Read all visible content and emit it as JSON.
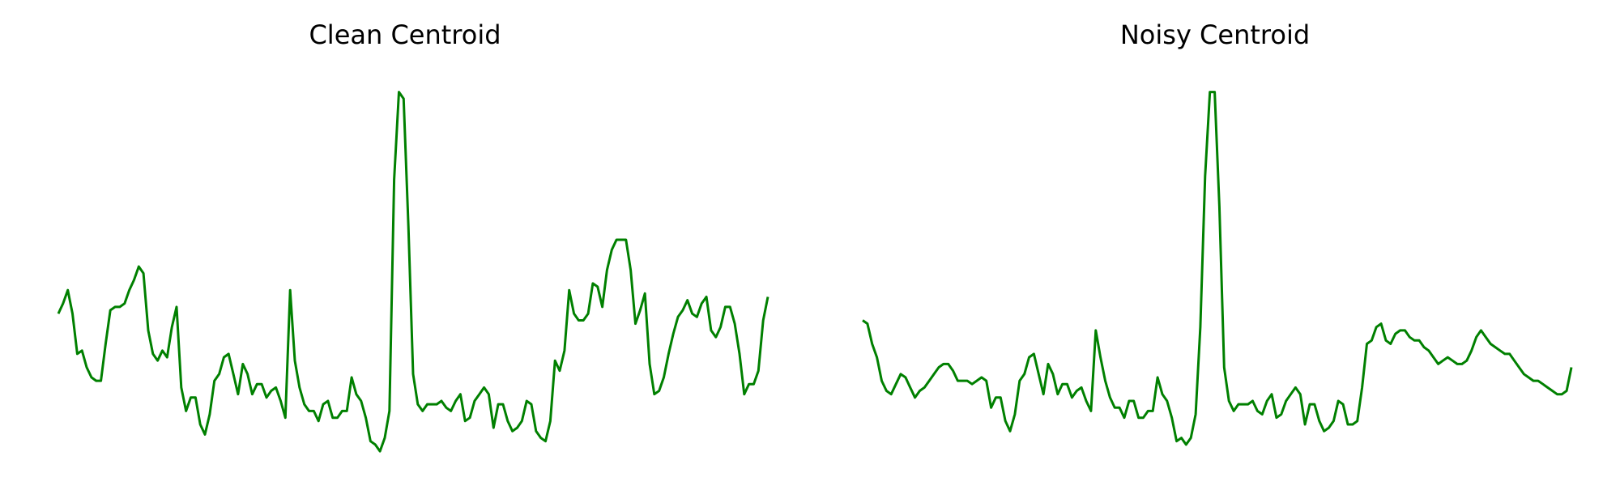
{
  "chart_data": [
    {
      "type": "line",
      "title": "Clean Centroid",
      "axes_visible": false,
      "grid": false,
      "line_color": "#008000",
      "series": [
        {
          "values": [
            0.34,
            0.37,
            0.41,
            0.34,
            0.22,
            0.23,
            0.18,
            0.15,
            0.14,
            0.14,
            0.25,
            0.35,
            0.36,
            0.36,
            0.37,
            0.41,
            0.44,
            0.48,
            0.46,
            0.29,
            0.22,
            0.2,
            0.23,
            0.21,
            0.3,
            0.36,
            0.12,
            0.05,
            0.09,
            0.09,
            0.01,
            -0.02,
            0.04,
            0.14,
            0.16,
            0.21,
            0.22,
            0.16,
            0.1,
            0.19,
            0.16,
            0.1,
            0.13,
            0.13,
            0.09,
            0.11,
            0.12,
            0.08,
            0.03,
            0.41,
            0.2,
            0.12,
            0.07,
            0.05,
            0.05,
            0.02,
            0.07,
            0.08,
            0.03,
            0.03,
            0.05,
            0.05,
            0.15,
            0.1,
            0.08,
            0.03,
            -0.04,
            -0.05,
            -0.07,
            -0.03,
            0.05,
            0.74,
            1.0,
            0.98,
            0.6,
            0.16,
            0.07,
            0.05,
            0.07,
            0.07,
            0.07,
            0.08,
            0.06,
            0.05,
            0.08,
            0.1,
            0.02,
            0.03,
            0.08,
            0.1,
            0.12,
            0.1,
            0.0,
            0.07,
            0.07,
            0.02,
            -0.01,
            0.0,
            0.02,
            0.08,
            0.07,
            -0.01,
            -0.03,
            -0.04,
            0.02,
            0.2,
            0.17,
            0.23,
            0.41,
            0.34,
            0.32,
            0.32,
            0.34,
            0.43,
            0.42,
            0.36,
            0.47,
            0.53,
            0.56,
            0.56,
            0.56,
            0.47,
            0.31,
            0.35,
            0.4,
            0.19,
            0.1,
            0.11,
            0.15,
            0.22,
            0.28,
            0.33,
            0.35,
            0.38,
            0.34,
            0.33,
            0.37,
            0.39,
            0.29,
            0.27,
            0.3,
            0.36,
            0.36,
            0.31,
            0.22,
            0.1,
            0.13,
            0.13,
            0.17,
            0.32,
            0.39
          ]
        }
      ],
      "ylim": [
        -0.06,
        1.04
      ]
    },
    {
      "type": "line",
      "title": "Noisy Centroid",
      "axes_visible": false,
      "grid": false,
      "line_color": "#008000",
      "series": [
        {
          "values": [
            0.32,
            0.31,
            0.25,
            0.21,
            0.14,
            0.11,
            0.1,
            0.13,
            0.16,
            0.15,
            0.12,
            0.09,
            0.11,
            0.12,
            0.14,
            0.16,
            0.18,
            0.19,
            0.19,
            0.17,
            0.14,
            0.14,
            0.14,
            0.13,
            0.14,
            0.15,
            0.14,
            0.06,
            0.09,
            0.09,
            0.02,
            -0.01,
            0.04,
            0.14,
            0.16,
            0.21,
            0.22,
            0.16,
            0.1,
            0.19,
            0.16,
            0.1,
            0.13,
            0.13,
            0.09,
            0.11,
            0.12,
            0.08,
            0.05,
            0.29,
            0.21,
            0.14,
            0.09,
            0.06,
            0.06,
            0.03,
            0.08,
            0.08,
            0.03,
            0.03,
            0.05,
            0.05,
            0.15,
            0.1,
            0.08,
            0.03,
            -0.04,
            -0.03,
            -0.05,
            -0.03,
            0.04,
            0.3,
            0.75,
            1.0,
            1.0,
            0.66,
            0.18,
            0.08,
            0.05,
            0.07,
            0.07,
            0.07,
            0.08,
            0.05,
            0.04,
            0.08,
            0.1,
            0.03,
            0.04,
            0.08,
            0.1,
            0.12,
            0.1,
            0.01,
            0.07,
            0.07,
            0.02,
            -0.01,
            0.0,
            0.02,
            0.08,
            0.07,
            0.01,
            0.01,
            0.02,
            0.12,
            0.25,
            0.26,
            0.3,
            0.31,
            0.26,
            0.25,
            0.28,
            0.29,
            0.29,
            0.27,
            0.26,
            0.26,
            0.24,
            0.23,
            0.21,
            0.19,
            0.2,
            0.21,
            0.2,
            0.19,
            0.19,
            0.2,
            0.23,
            0.27,
            0.29,
            0.27,
            0.25,
            0.24,
            0.23,
            0.22,
            0.22,
            0.2,
            0.18,
            0.16,
            0.15,
            0.14,
            0.14,
            0.13,
            0.12,
            0.11,
            0.1,
            0.1,
            0.11,
            0.18
          ]
        }
      ],
      "ylim": [
        -0.06,
        1.04
      ]
    }
  ]
}
